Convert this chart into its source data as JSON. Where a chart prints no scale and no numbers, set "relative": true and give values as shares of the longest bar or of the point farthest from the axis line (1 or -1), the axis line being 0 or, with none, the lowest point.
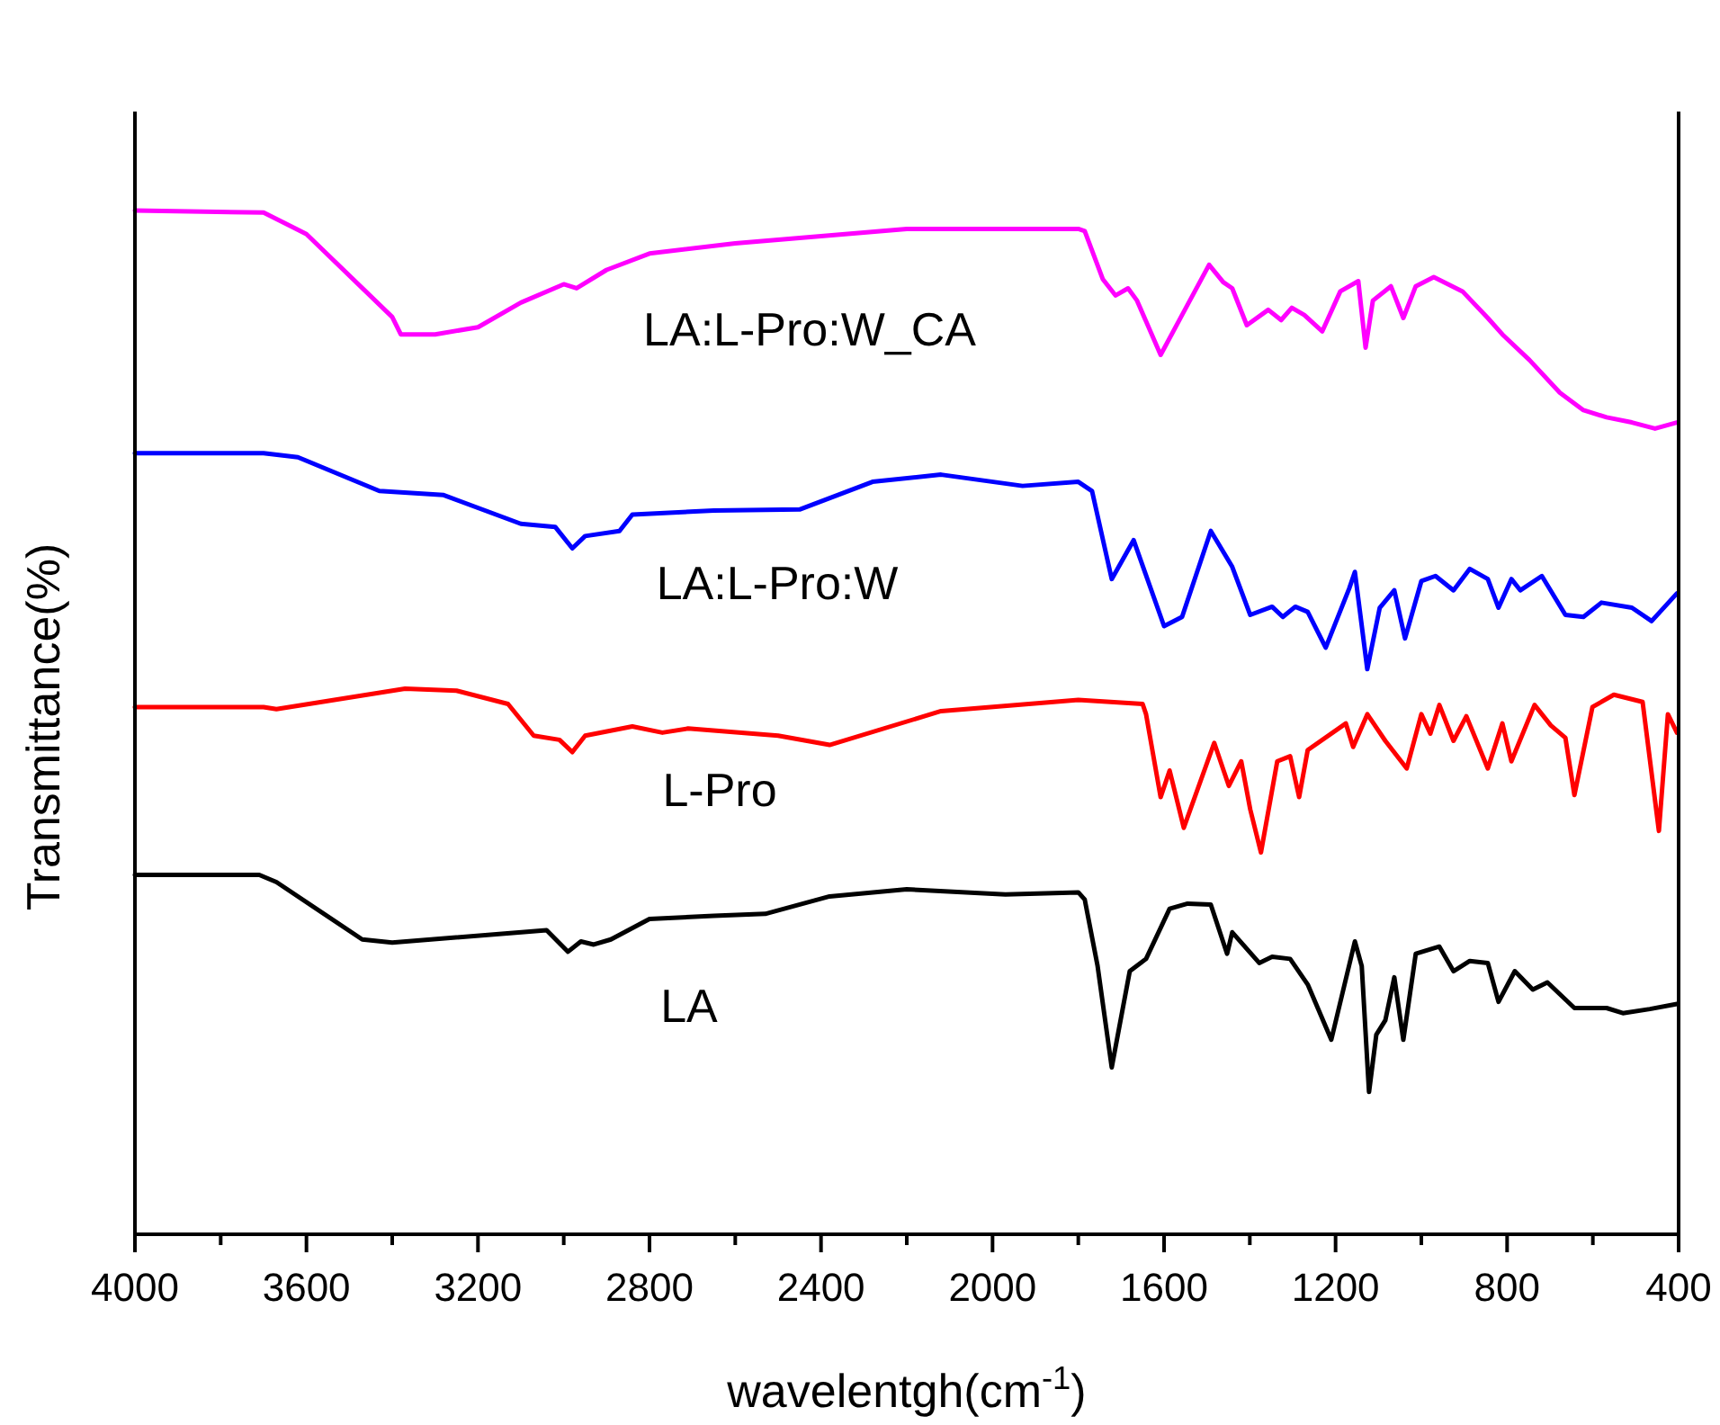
{
  "chart_data": {
    "type": "line",
    "relative": true,
    "xlabel": "wavelentgh(cm$^{-1}$)",
    "ylabel": "Transmittance(%)",
    "xlim": [
      4000,
      400
    ],
    "xticks": [
      4000,
      {
        "value": 3800,
        "label": null
      },
      3600,
      {
        "value": 3400,
        "label": null
      },
      3200,
      {
        "value": 3000,
        "label": null
      },
      2800,
      {
        "value": 2600,
        "label": null
      },
      2400,
      {
        "value": 2200,
        "label": null
      },
      2000,
      {
        "value": 1800,
        "label": null
      },
      1600,
      {
        "value": 1400,
        "label": null
      },
      1200,
      {
        "value": 1000,
        "label": null
      },
      800,
      {
        "value": 600,
        "label": null
      },
      400
    ],
    "series": [
      {
        "name": "LA:L-Pro:W_CA",
        "color": "#ff00ff",
        "x": [
          4000,
          3700,
          3600,
          3400,
          3380,
          3300,
          3200,
          3100,
          3000,
          2970,
          2900,
          2800,
          2600,
          2400,
          2200,
          2000,
          1800,
          1785,
          1743,
          1713,
          1684,
          1663,
          1608,
          1558,
          1495,
          1462,
          1441,
          1407,
          1357,
          1327,
          1302,
          1273,
          1231,
          1189,
          1147,
          1130,
          1113,
          1071,
          1042,
          1013,
          971,
          904,
          845,
          811,
          748,
          677,
          622,
          568,
          509,
          455,
          404
        ],
        "values": [
          1.0,
          0.998,
          0.977,
          0.896,
          0.879,
          0.879,
          0.886,
          0.91,
          0.928,
          0.924,
          0.942,
          0.958,
          0.968,
          0.975,
          0.982,
          0.982,
          0.982,
          0.98,
          0.933,
          0.917,
          0.924,
          0.912,
          0.859,
          0.898,
          0.947,
          0.93,
          0.924,
          0.888,
          0.903,
          0.893,
          0.905,
          0.898,
          0.882,
          0.921,
          0.931,
          0.866,
          0.912,
          0.926,
          0.895,
          0.926,
          0.935,
          0.921,
          0.895,
          0.879,
          0.854,
          0.822,
          0.805,
          0.798,
          0.793,
          0.787,
          0.793
        ]
      },
      {
        "name": "LA:L-Pro:W",
        "color": "#0000ff",
        "x": [
          4000,
          3700,
          3620,
          3430,
          3280,
          3100,
          3020,
          2980,
          2950,
          2870,
          2840,
          2650,
          2450,
          2280,
          2120,
          1930,
          1800,
          1768,
          1722,
          1671,
          1600,
          1558,
          1491,
          1441,
          1399,
          1348,
          1323,
          1294,
          1265,
          1223,
          1168,
          1155,
          1126,
          1097,
          1063,
          1038,
          1000,
          967,
          925,
          887,
          845,
          820,
          790,
          769,
          719,
          664,
          622,
          580,
          509,
          463,
          404
        ],
        "values": [
          0.763,
          0.763,
          0.759,
          0.726,
          0.722,
          0.694,
          0.691,
          0.67,
          0.682,
          0.687,
          0.703,
          0.707,
          0.708,
          0.735,
          0.742,
          0.731,
          0.735,
          0.726,
          0.64,
          0.678,
          0.594,
          0.603,
          0.687,
          0.652,
          0.605,
          0.613,
          0.603,
          0.613,
          0.608,
          0.573,
          0.631,
          0.647,
          0.552,
          0.612,
          0.629,
          0.582,
          0.638,
          0.643,
          0.629,
          0.65,
          0.64,
          0.612,
          0.64,
          0.629,
          0.643,
          0.605,
          0.603,
          0.617,
          0.612,
          0.599,
          0.626
        ]
      },
      {
        "name": "L-Pro",
        "color": "#ff0000",
        "x": [
          4000,
          3700,
          3670,
          3370,
          3250,
          3130,
          3070,
          3010,
          2980,
          2950,
          2840,
          2770,
          2710,
          2500,
          2380,
          2120,
          1800,
          1650,
          1642,
          1608,
          1587,
          1554,
          1483,
          1449,
          1420,
          1399,
          1374,
          1336,
          1306,
          1285,
          1265,
          1176,
          1159,
          1126,
          1084,
          1034,
          1000,
          979,
          958,
          925,
          895,
          845,
          811,
          790,
          736,
          698,
          664,
          643,
          601,
          551,
          484,
          446,
          425,
          404
        ],
        "values": [
          0.515,
          0.515,
          0.513,
          0.533,
          0.531,
          0.518,
          0.487,
          0.483,
          0.471,
          0.487,
          0.496,
          0.49,
          0.494,
          0.487,
          0.478,
          0.511,
          0.522,
          0.518,
          0.508,
          0.427,
          0.453,
          0.397,
          0.48,
          0.438,
          0.462,
          0.415,
          0.373,
          0.462,
          0.467,
          0.427,
          0.473,
          0.499,
          0.476,
          0.508,
          0.482,
          0.455,
          0.508,
          0.489,
          0.517,
          0.482,
          0.506,
          0.455,
          0.499,
          0.462,
          0.517,
          0.497,
          0.485,
          0.429,
          0.515,
          0.527,
          0.52,
          0.394,
          0.508,
          0.49
        ]
      },
      {
        "name": "LA",
        "color": "#000000",
        "x": [
          4000,
          3710,
          3670,
          3470,
          3400,
          3040,
          2990,
          2960,
          2930,
          2890,
          2800,
          2650,
          2530,
          2380,
          2200,
          1970,
          1800,
          1785,
          1755,
          1722,
          1680,
          1642,
          1587,
          1545,
          1491,
          1453,
          1441,
          1378,
          1348,
          1306,
          1265,
          1210,
          1155,
          1139,
          1122,
          1105,
          1084,
          1063,
          1042,
          1013,
          958,
          925,
          887,
          845,
          820,
          782,
          740,
          706,
          643,
          568,
          530,
          467,
          404
        ],
        "values": [
          0.351,
          0.351,
          0.344,
          0.288,
          0.285,
          0.297,
          0.276,
          0.286,
          0.283,
          0.288,
          0.308,
          0.311,
          0.313,
          0.33,
          0.337,
          0.332,
          0.334,
          0.327,
          0.262,
          0.163,
          0.257,
          0.269,
          0.318,
          0.323,
          0.322,
          0.274,
          0.295,
          0.265,
          0.271,
          0.269,
          0.244,
          0.19,
          0.286,
          0.262,
          0.139,
          0.195,
          0.209,
          0.251,
          0.19,
          0.274,
          0.281,
          0.257,
          0.267,
          0.265,
          0.227,
          0.257,
          0.239,
          0.246,
          0.221,
          0.221,
          0.216,
          0.22,
          0.225
        ]
      }
    ]
  }
}
